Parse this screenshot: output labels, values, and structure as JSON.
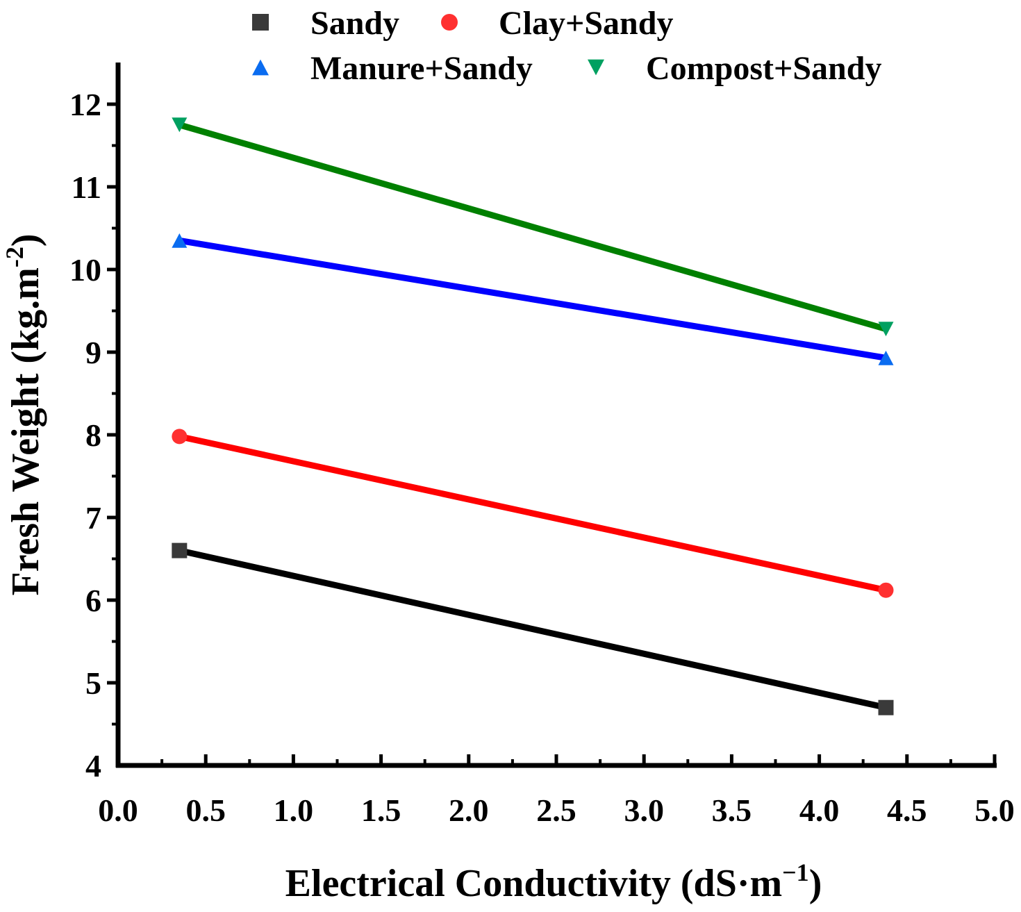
{
  "chart_data": {
    "type": "line",
    "title": "",
    "xlabel": "Electrical Conductivity (dS·m",
    "xlabel_sup": "−1",
    "xlabel_close": ")",
    "ylabel": "Fresh Weight (kg.m",
    "ylabel_sup": "-2",
    "ylabel_close": ")",
    "xlim": [
      0.0,
      5.0
    ],
    "ylim": [
      4,
      12.5
    ],
    "x_ticks": [
      "0.0",
      "0.5",
      "1.0",
      "1.5",
      "2.0",
      "2.5",
      "3.0",
      "3.5",
      "4.0",
      "4.5",
      "5.0"
    ],
    "y_ticks": [
      "4",
      "5",
      "6",
      "7",
      "8",
      "9",
      "10",
      "11",
      "12"
    ],
    "grid": false,
    "legend_position": "top",
    "series": [
      {
        "name": "Sandy",
        "marker": "square",
        "color": "#000000",
        "marker_color": "#3a3a3a",
        "x": [
          0.35,
          4.38
        ],
        "values": [
          6.6,
          4.7
        ]
      },
      {
        "name": "Clay+Sandy",
        "marker": "circle",
        "color": "#ff0000",
        "marker_color": "#ff3030",
        "x": [
          0.35,
          4.38
        ],
        "values": [
          7.98,
          6.12
        ]
      },
      {
        "name": "Manure+Sandy",
        "marker": "triangle-up",
        "color": "#0000ff",
        "marker_color": "#0a6cf0",
        "x": [
          0.35,
          4.38
        ],
        "values": [
          10.35,
          8.93
        ]
      },
      {
        "name": "Compost+Sandy",
        "marker": "triangle-down",
        "color": "#008000",
        "marker_color": "#00a060",
        "x": [
          0.35,
          4.38
        ],
        "values": [
          11.75,
          9.28
        ]
      }
    ]
  }
}
